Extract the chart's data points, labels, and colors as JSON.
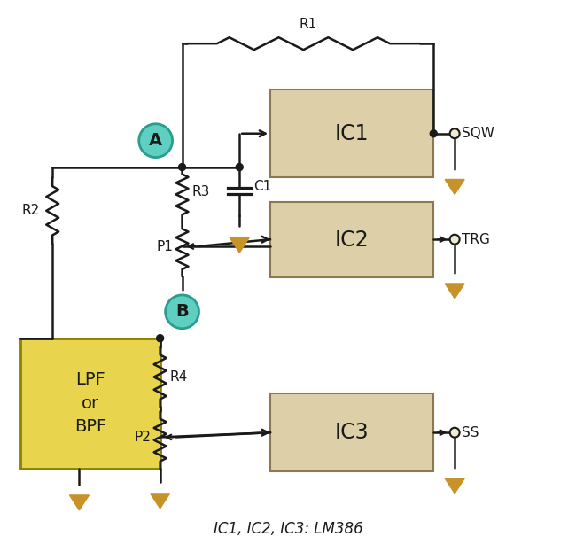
{
  "background_color": "#ffffff",
  "ic_box_color": "#ddd0a8",
  "ic_box_edge_color": "#8b7a50",
  "lpf_box_color": "#e8d44d",
  "lpf_box_edge_color": "#8b8000",
  "wire_color": "#1a1a1a",
  "ground_color": "#c8922a",
  "node_color": "#1a1a1a",
  "circle_label_color": "#5ecfc0",
  "circle_label_edge": "#2a9d8f",
  "output_circle_color": "#f0ead0",
  "output_circle_edge": "#1a1a1a",
  "text_color": "#1a1a1a",
  "resistor_color": "#1a1a1a",
  "title": "IC1, IC2, IC3: LM386",
  "label_A": "A",
  "label_B": "B",
  "label_IC1": "IC1",
  "label_IC2": "IC2",
  "label_IC3": "IC3",
  "label_LPF": "LPF\nor\nBPF",
  "label_R1": "R1",
  "label_R2": "R2",
  "label_R3": "R3",
  "label_R4": "R4",
  "label_C1": "C1",
  "label_P1": "P1",
  "label_P2": "P2",
  "label_SQW": "SQW",
  "label_TRG": "TRG",
  "label_SS": "SS"
}
